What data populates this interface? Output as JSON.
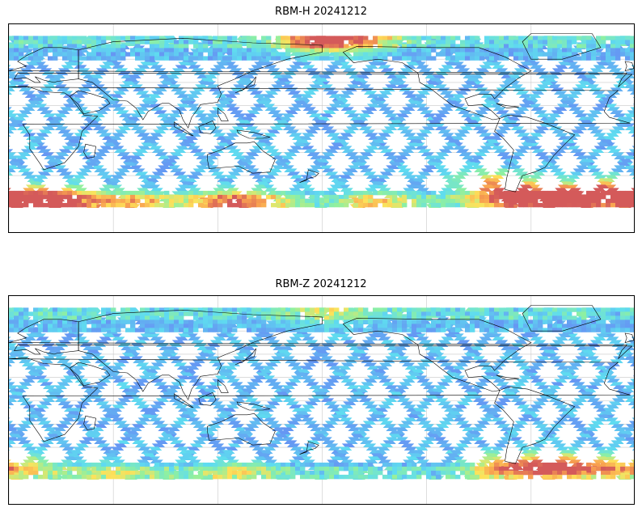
{
  "panels": [
    {
      "title": "RBM-H 20241212",
      "hot_spots": [
        {
          "lon": 10,
          "lat": -62,
          "strength": 1.0
        },
        {
          "lon": 30,
          "lat": -58,
          "strength": 0.7
        },
        {
          "lon": 70,
          "lat": -62,
          "strength": 0.55
        },
        {
          "lon": 120,
          "lat": -62,
          "strength": 0.5
        },
        {
          "lon": 140,
          "lat": -60,
          "strength": 0.45
        },
        {
          "lon": 175,
          "lat": 78,
          "strength": 0.75
        },
        {
          "lon": 200,
          "lat": 80,
          "strength": 0.6
        },
        {
          "lon": 210,
          "lat": -62,
          "strength": 0.45
        },
        {
          "lon": 290,
          "lat": -58,
          "strength": 1.0
        },
        {
          "lon": 320,
          "lat": -58,
          "strength": 1.0
        },
        {
          "lon": 345,
          "lat": -52,
          "strength": 0.9
        },
        {
          "lon": 280,
          "lat": -45,
          "strength": 0.6
        }
      ]
    },
    {
      "title": "RBM-Z 20241212",
      "hot_spots": [
        {
          "lon": 5,
          "lat": -55,
          "strength": 0.45
        },
        {
          "lon": 60,
          "lat": -62,
          "strength": 0.3
        },
        {
          "lon": 130,
          "lat": -60,
          "strength": 0.35
        },
        {
          "lon": 180,
          "lat": 78,
          "strength": 0.3
        },
        {
          "lon": 285,
          "lat": -55,
          "strength": 0.6
        },
        {
          "lon": 310,
          "lat": -55,
          "strength": 0.7
        },
        {
          "lon": 335,
          "lat": -55,
          "strength": 0.5
        }
      ]
    }
  ],
  "colors": {
    "low": "#6a68f5",
    "mid": "#5fdcf0",
    "green": "#8ff0a0",
    "yellow": "#fde25a",
    "orange": "#f8a050",
    "high": "#d45a5a",
    "coast": "#000000",
    "grid": "#c8c8c8"
  }
}
